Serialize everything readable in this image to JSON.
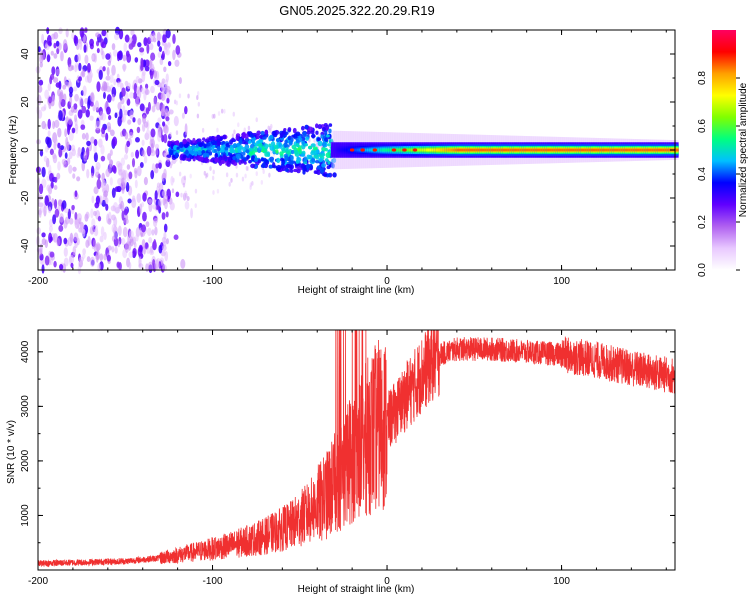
{
  "title": "GN05.2025.322.20.29.R19",
  "chart_data": [
    {
      "type": "heatmap",
      "name": "spectrogram",
      "xlabel": "Height of straight line (km)",
      "ylabel": "Frequency (Hz)",
      "xlim": [
        -200,
        165
      ],
      "ylim": [
        -50,
        50
      ],
      "xticks": [
        -200,
        -100,
        0,
        100
      ],
      "xtick_labels": [
        "-200",
        "-100",
        "0",
        "100"
      ],
      "yticks": [
        -40,
        -20,
        0,
        20,
        40
      ],
      "ytick_labels": [
        "-40",
        "-20",
        "0",
        "20",
        "40"
      ],
      "colorbar": {
        "label": "Normalized spectral amplitude",
        "range": [
          0,
          1
        ],
        "ticks": [
          0.0,
          0.2,
          0.4,
          0.6,
          0.8
        ],
        "tick_labels": [
          "0.0",
          "0.2",
          "0.4",
          "0.6",
          "0.8"
        ],
        "colormap": [
          "#ffffff",
          "#e8c8ff",
          "#b060f0",
          "#6000ff",
          "#0000ff",
          "#00c0ff",
          "#00ff80",
          "#80ff00",
          "#ffff00",
          "#ffa000",
          "#ff0000",
          "#ff0060"
        ]
      },
      "description_series": [
        {
          "region": "noise",
          "x_range": [
            -200,
            -125
          ],
          "freq_spread": 50,
          "amplitude": 0.15
        },
        {
          "region": "emerging",
          "x_range": [
            -125,
            -30
          ],
          "freq_spread": 10,
          "amplitude": 0.3
        },
        {
          "region": "carrier",
          "x_range": [
            -30,
            165
          ],
          "freq_spread": 2,
          "amplitude": 0.9
        }
      ]
    },
    {
      "type": "line",
      "name": "snr",
      "xlabel": "Height of straight line (km)",
      "ylabel": "SNR (10 * v/v)",
      "xlim": [
        -200,
        165
      ],
      "ylim": [
        0,
        4400
      ],
      "xticks": [
        -200,
        -100,
        0,
        100
      ],
      "xtick_labels": [
        "-200",
        "-100",
        "0",
        "100"
      ],
      "yticks": [
        1000,
        2000,
        3000,
        4000
      ],
      "ytick_labels": [
        "1000",
        "2000",
        "3000",
        "4000"
      ],
      "color": "#f03030",
      "envelope_x": [
        -200,
        -150,
        -130,
        -110,
        -90,
        -70,
        -55,
        -45,
        -35,
        -25,
        -20,
        -15,
        -10,
        -5,
        0,
        5,
        10,
        15,
        20,
        25,
        30,
        40,
        60,
        80,
        100,
        120,
        140,
        165
      ],
      "envelope_y": [
        120,
        160,
        220,
        330,
        450,
        620,
        820,
        1050,
        1350,
        1800,
        2100,
        2250,
        2500,
        2650,
        2700,
        2900,
        3150,
        3350,
        3600,
        3800,
        3950,
        4050,
        4050,
        4000,
        3950,
        3850,
        3700,
        3550
      ]
    }
  ]
}
